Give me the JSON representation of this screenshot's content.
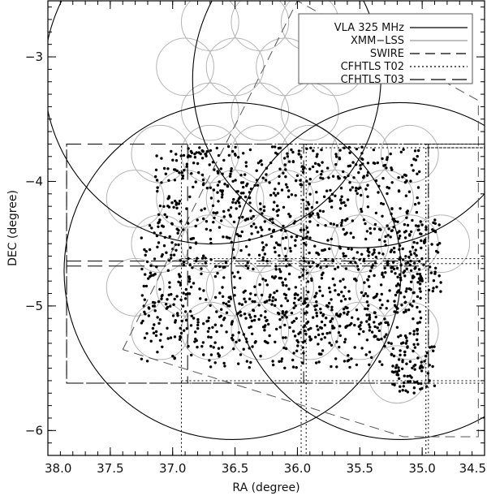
{
  "chart_data": {
    "type": "scatter",
    "xlabel": "RA (degree)",
    "ylabel": "DEC (degree)",
    "xlim": [
      38.0,
      34.5
    ],
    "ylim": [
      -6.2,
      -2.55
    ],
    "x_ticks": [
      {
        "value": 38.0,
        "label": "38.0"
      },
      {
        "value": 37.5,
        "label": "37.5"
      },
      {
        "value": 37.0,
        "label": "37.0"
      },
      {
        "value": 36.5,
        "label": "36.5"
      },
      {
        "value": 36.0,
        "label": "36.0"
      },
      {
        "value": 35.5,
        "label": "35.5"
      },
      {
        "value": 35.0,
        "label": "35.0"
      },
      {
        "value": 34.5,
        "label": "34.5"
      }
    ],
    "y_ticks": [
      {
        "value": -3,
        "label": "−3"
      },
      {
        "value": -4,
        "label": "−4"
      },
      {
        "value": -5,
        "label": "−5"
      },
      {
        "value": -6,
        "label": "−6"
      }
    ],
    "grid": false,
    "legend": {
      "placement": "top-right",
      "entries": [
        {
          "label": "VLA 325 MHz",
          "style": "solid",
          "color": "#000000"
        },
        {
          "label": "XMM−LSS",
          "style": "solid",
          "color": "#9a9a9a"
        },
        {
          "label": "SWIRE",
          "style": "dashed",
          "color": "#000000"
        },
        {
          "label": "CFHTLS T02",
          "style": "dotted",
          "color": "#000000"
        },
        {
          "label": "CFHTLS T03",
          "style": "longdash",
          "color": "#000000"
        }
      ]
    },
    "vla_pointings": [
      {
        "ra": 36.68,
        "dec": -3.15,
        "radius": 1.35
      },
      {
        "ra": 35.49,
        "dec": -3.18,
        "radius": 1.35
      },
      {
        "ra": 36.52,
        "dec": -4.72,
        "radius": 1.35
      },
      {
        "ra": 35.18,
        "dec": -4.72,
        "radius": 1.35
      }
    ],
    "xmm_pointing_radius": 0.23,
    "xmm_pointings": [
      [
        36.7,
        -2.72
      ],
      [
        36.3,
        -2.72
      ],
      [
        35.9,
        -2.72
      ],
      [
        36.9,
        -3.08
      ],
      [
        36.5,
        -3.08
      ],
      [
        36.1,
        -3.08
      ],
      [
        35.7,
        -3.08
      ],
      [
        36.7,
        -3.44
      ],
      [
        36.3,
        -3.44
      ],
      [
        35.9,
        -3.44
      ],
      [
        37.1,
        -3.78
      ],
      [
        36.7,
        -3.78
      ],
      [
        36.3,
        -3.78
      ],
      [
        35.9,
        -3.78
      ],
      [
        35.5,
        -3.78
      ],
      [
        35.1,
        -3.78
      ],
      [
        37.3,
        -4.14
      ],
      [
        36.9,
        -4.14
      ],
      [
        36.5,
        -4.14
      ],
      [
        36.1,
        -4.14
      ],
      [
        35.7,
        -4.14
      ],
      [
        35.3,
        -4.14
      ],
      [
        37.1,
        -4.5
      ],
      [
        36.7,
        -4.5
      ],
      [
        36.3,
        -4.5
      ],
      [
        35.9,
        -4.5
      ],
      [
        35.5,
        -4.5
      ],
      [
        35.1,
        -4.5
      ],
      [
        34.85,
        -4.5
      ],
      [
        37.3,
        -4.85
      ],
      [
        36.9,
        -4.85
      ],
      [
        36.5,
        -4.85
      ],
      [
        36.1,
        -4.85
      ],
      [
        35.7,
        -4.85
      ],
      [
        35.3,
        -4.85
      ],
      [
        37.1,
        -5.2
      ],
      [
        36.7,
        -5.2
      ],
      [
        36.3,
        -5.2
      ],
      [
        35.9,
        -5.2
      ],
      [
        35.5,
        -5.2
      ],
      [
        35.1,
        -5.2
      ],
      [
        35.2,
        -5.55
      ]
    ],
    "swire_polygon": [
      [
        37.4,
        -5.35
      ],
      [
        36.0,
        -2.55
      ],
      [
        34.55,
        -3.35
      ],
      [
        34.55,
        -6.05
      ],
      [
        35.15,
        -6.05
      ],
      [
        37.4,
        -5.35
      ]
    ],
    "cfhtls_t02_rects": [
      {
        "ra_min": 34.5,
        "ra_max": 36.93,
        "dec_min": -6.2,
        "dec_max": -3.7
      },
      {
        "ra_min": 34.5,
        "ra_max": 35.93,
        "dec_min": -6.2,
        "dec_max": -3.7
      },
      {
        "ra_min": 34.5,
        "ra_max": 34.97,
        "dec_min": -6.2,
        "dec_max": -3.7
      },
      {
        "ra_min": 34.5,
        "ra_max": 35.97,
        "dec_min": -6.2,
        "dec_max": -3.73
      },
      {
        "ra_min": 34.5,
        "ra_max": 34.95,
        "dec_min": -6.2,
        "dec_max": -3.73
      }
    ],
    "cfhtls_t02_hlines": [
      -4.62,
      -4.66,
      -5.62,
      -5.6
    ],
    "cfhtls_t03_rects": [
      {
        "ra_min": 34.95,
        "ra_max": 37.85,
        "dec_min": -5.62,
        "dec_max": -3.7
      },
      {
        "ra_min": 35.95,
        "ra_max": 37.85,
        "dec_min": -5.62,
        "dec_max": -3.7
      }
    ],
    "cfhtls_t03_hlines": [
      -4.64,
      -4.68
    ],
    "cfhtls_t03_vlines": [
      36.88
    ],
    "source_cloud": {
      "point_count": 1500,
      "regions": [
        {
          "ra": [
            35.0,
            37.15
          ],
          "dec": [
            -4.35,
            -3.72
          ],
          "weight": 0.3
        },
        {
          "ra": [
            35.0,
            37.25
          ],
          "dec": [
            -5.3,
            -4.35
          ],
          "weight": 0.42
        },
        {
          "ra": [
            35.0,
            36.7
          ],
          "dec": [
            -5.5,
            -4.9
          ],
          "weight": 0.14
        },
        {
          "ra": [
            34.85,
            35.3
          ],
          "dec": [
            -4.9,
            -4.3
          ],
          "weight": 0.06
        },
        {
          "ra": [
            34.9,
            35.25
          ],
          "dec": [
            -5.7,
            -5.3
          ],
          "weight": 0.05
        },
        {
          "ra": [
            36.7,
            37.3
          ],
          "dec": [
            -5.45,
            -4.9
          ],
          "weight": 0.03
        }
      ]
    }
  }
}
